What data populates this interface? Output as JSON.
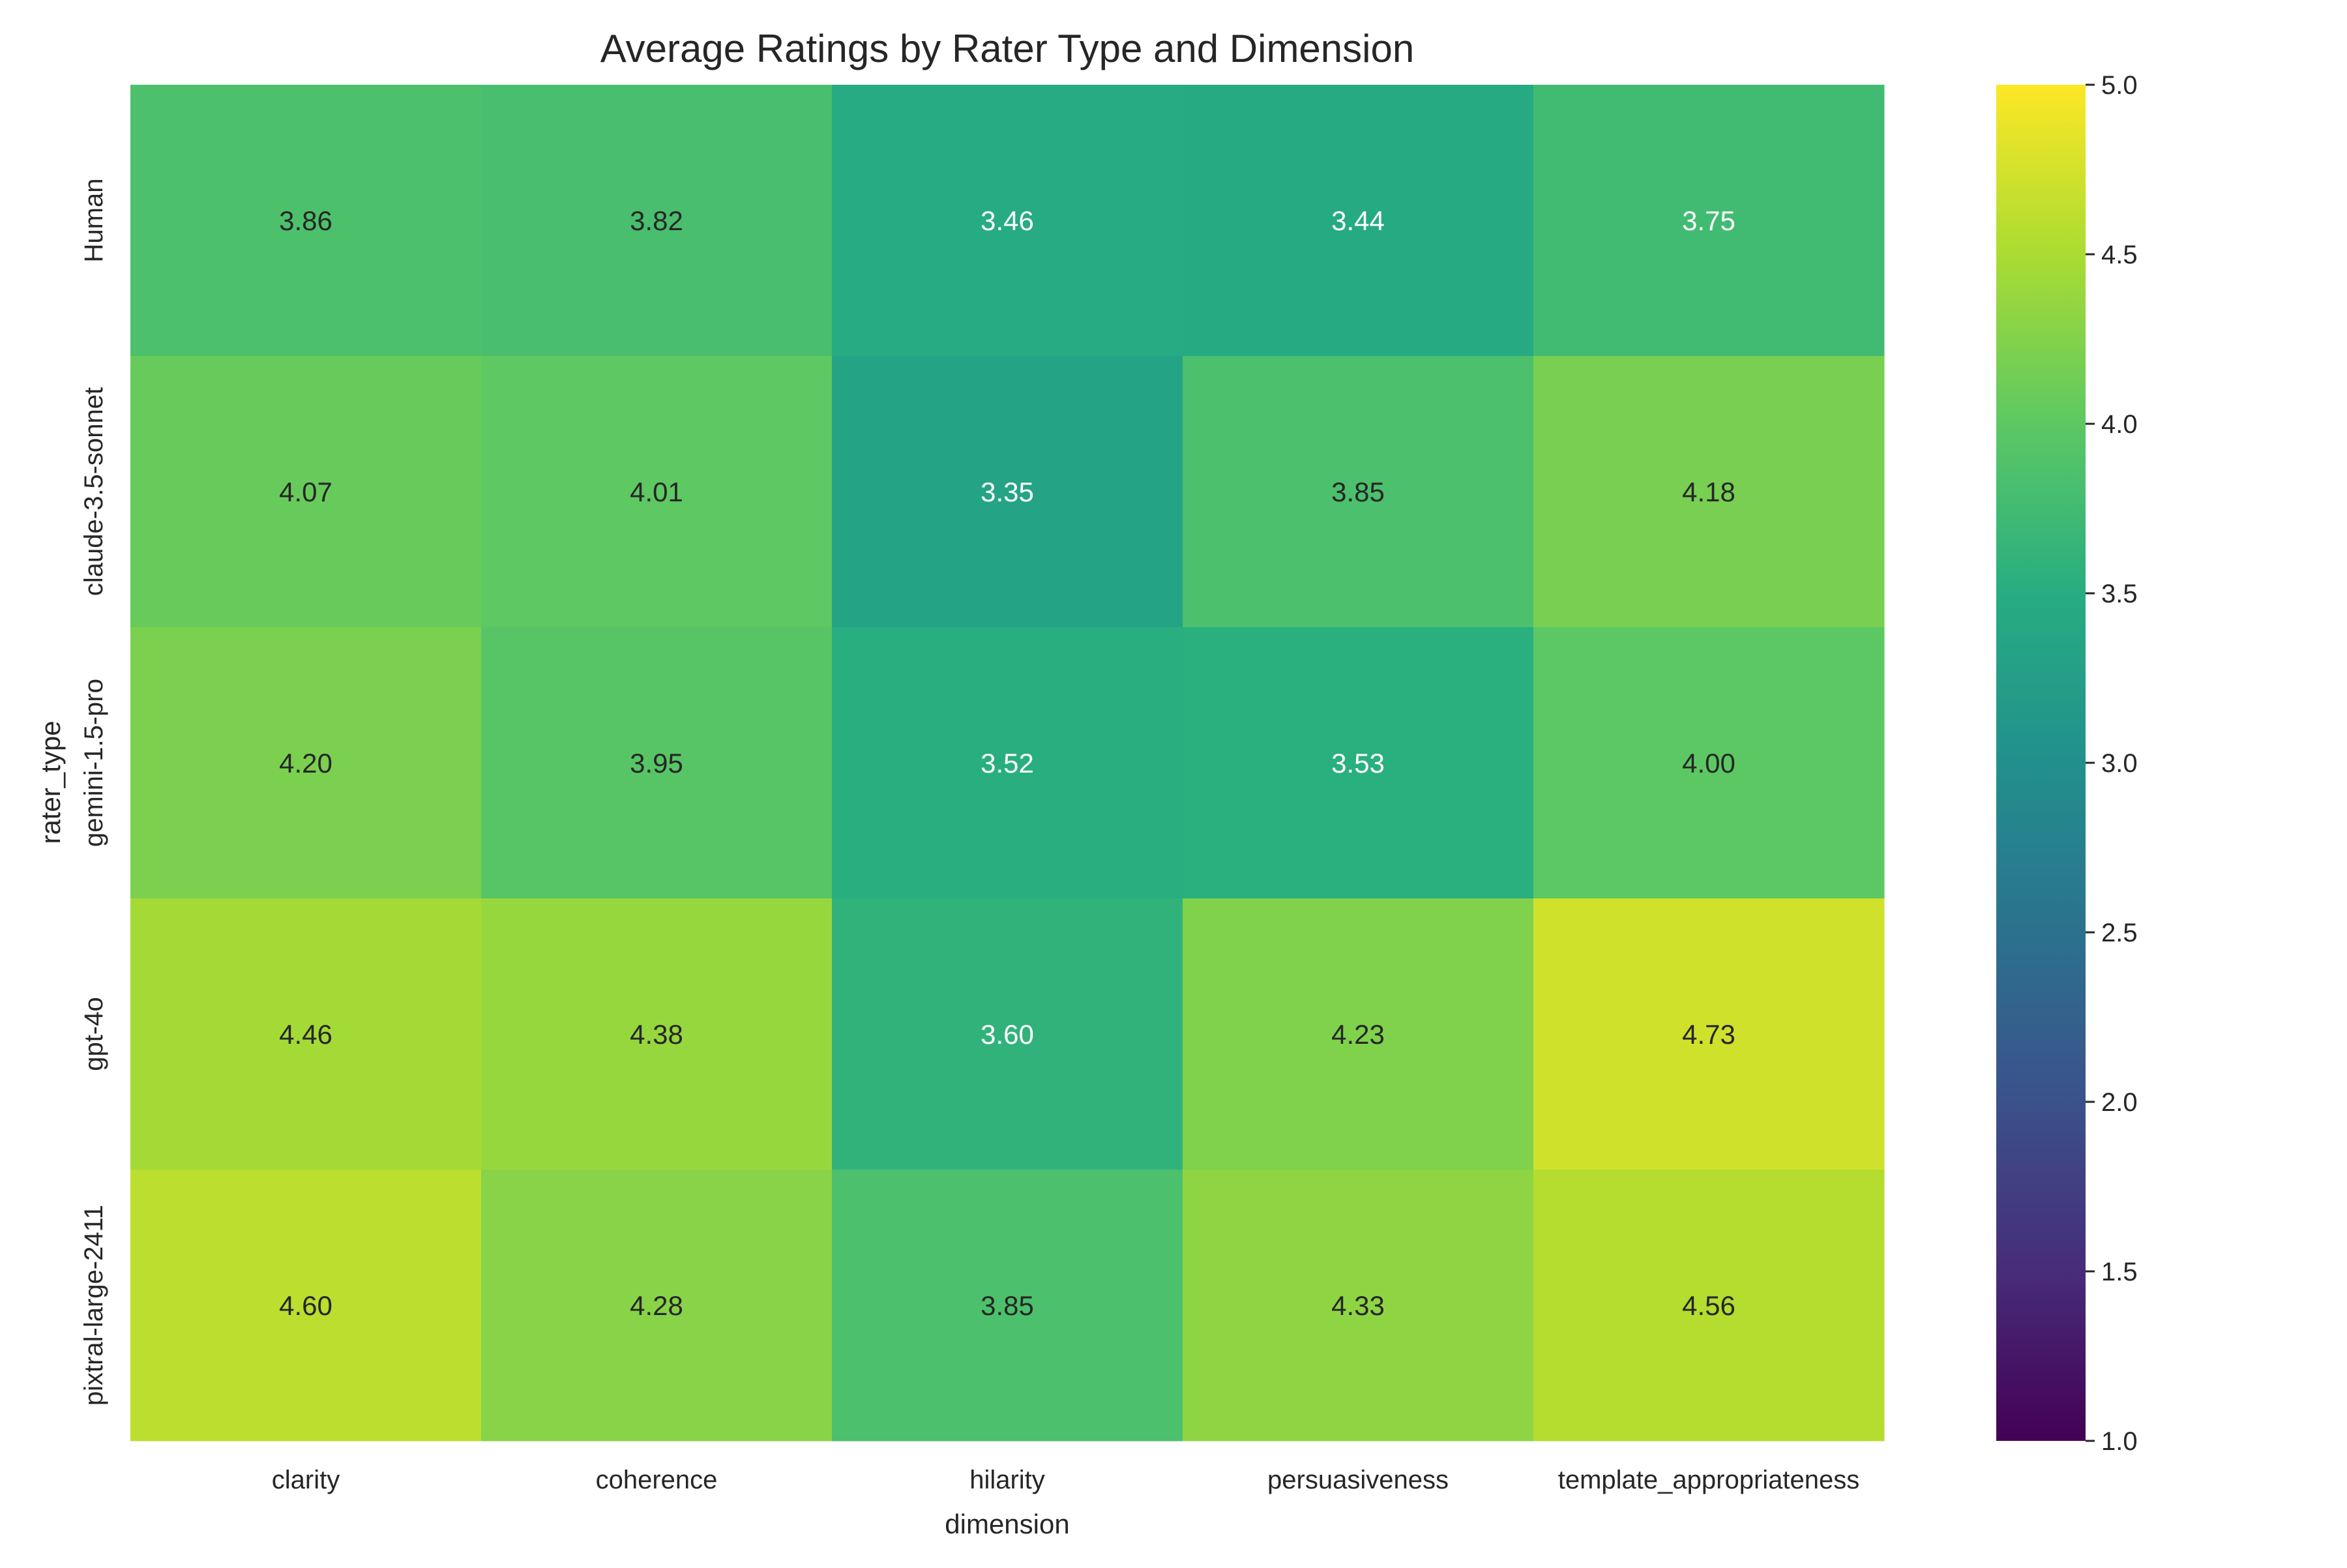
{
  "chart_data": {
    "type": "heatmap",
    "title": "Average Ratings by Rater Type and Dimension",
    "xlabel": "dimension",
    "ylabel": "rater_type",
    "x_categories": [
      "clarity",
      "coherence",
      "hilarity",
      "persuasiveness",
      "template_appropriateness"
    ],
    "y_categories": [
      "Human",
      "claude-3.5-sonnet",
      "gemini-1.5-pro",
      "gpt-4o",
      "pixtral-large-2411"
    ],
    "values": [
      [
        3.86,
        3.82,
        3.46,
        3.44,
        3.75
      ],
      [
        4.07,
        4.01,
        3.35,
        3.85,
        4.18
      ],
      [
        4.2,
        3.95,
        3.52,
        3.53,
        4.0
      ],
      [
        4.46,
        4.38,
        3.6,
        4.23,
        4.73
      ],
      [
        4.6,
        4.28,
        3.85,
        4.33,
        4.56
      ]
    ],
    "value_format": "0.00",
    "colormap": "viridis",
    "colorbar": {
      "range": [
        1.0,
        5.0
      ],
      "ticks": [
        1.0,
        1.5,
        2.0,
        2.5,
        3.0,
        3.5,
        4.0,
        4.5,
        5.0
      ],
      "tick_labels": [
        "1.0",
        "1.5",
        "2.0",
        "2.5",
        "3.0",
        "3.5",
        "4.0",
        "4.5",
        "5.0"
      ]
    },
    "annotation_colors": {
      "dark_cell_text": "#ffffff",
      "light_cell_text": "#262626"
    },
    "grid": false
  }
}
